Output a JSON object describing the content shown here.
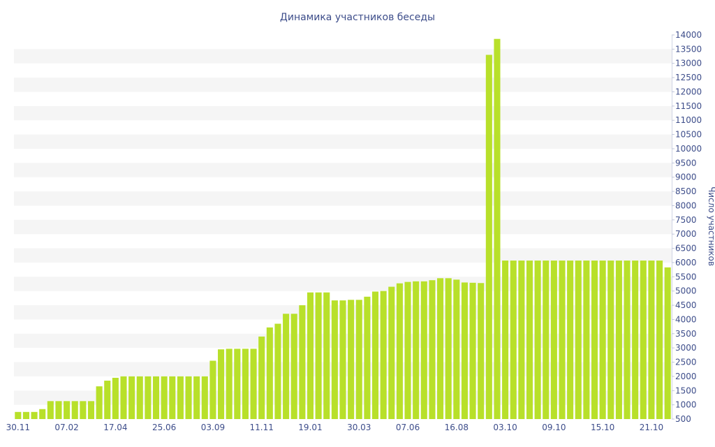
{
  "chart_data": {
    "type": "bar",
    "title": "Динамика участников беседы",
    "xlabel": "",
    "ylabel": "Число участников",
    "ylim": [
      500,
      14000
    ],
    "ytick_step": 500,
    "grid": "alternating horizontal bands",
    "colors": {
      "bar": "#b8e02a",
      "band": "#f5f5f5",
      "text": "#3d4d8a"
    },
    "x_tick_labels": [
      {
        "index": 0,
        "label": "30.11"
      },
      {
        "index": 6,
        "label": "07.02"
      },
      {
        "index": 12,
        "label": "17.04"
      },
      {
        "index": 18,
        "label": "25.06"
      },
      {
        "index": 24,
        "label": "03.09"
      },
      {
        "index": 30,
        "label": "11.11"
      },
      {
        "index": 36,
        "label": "19.01"
      },
      {
        "index": 42,
        "label": "30.03"
      },
      {
        "index": 48,
        "label": "07.06"
      },
      {
        "index": 54,
        "label": "16.08"
      },
      {
        "index": 60,
        "label": "03.10"
      },
      {
        "index": 66,
        "label": "09.10"
      },
      {
        "index": 72,
        "label": "15.10"
      },
      {
        "index": 78,
        "label": "21.10"
      }
    ],
    "values": [
      750,
      750,
      750,
      850,
      1130,
      1130,
      1130,
      1130,
      1130,
      1130,
      1650,
      1850,
      1950,
      2000,
      2000,
      2000,
      2000,
      2000,
      2000,
      2000,
      2000,
      2000,
      2000,
      2000,
      2550,
      2950,
      2970,
      2970,
      2970,
      2970,
      3400,
      3720,
      3850,
      4200,
      4200,
      4500,
      4950,
      4950,
      4950,
      4670,
      4670,
      4690,
      4690,
      4800,
      4980,
      5000,
      5150,
      5270,
      5320,
      5340,
      5340,
      5380,
      5450,
      5450,
      5400,
      5300,
      5290,
      5280,
      13300,
      13860,
      6070,
      6070,
      6070,
      6070,
      6070,
      6070,
      6070,
      6070,
      6070,
      6070,
      6070,
      6070,
      6070,
      6070,
      6070,
      6070,
      6070,
      6070,
      6070,
      6070,
      5830
    ]
  }
}
